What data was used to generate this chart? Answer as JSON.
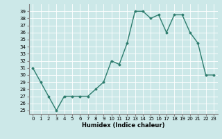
{
  "x": [
    0,
    1,
    2,
    3,
    4,
    5,
    6,
    7,
    8,
    9,
    10,
    11,
    12,
    13,
    14,
    15,
    16,
    17,
    18,
    19,
    20,
    21,
    22,
    23
  ],
  "y": [
    31,
    29,
    27,
    25,
    27,
    27,
    27,
    27,
    28,
    29,
    32,
    31.5,
    34.5,
    39,
    39,
    38,
    38.5,
    36,
    38.5,
    38.5,
    36,
    34.5,
    30,
    30
  ],
  "xlabel": "Humidex (Indice chaleur)",
  "xlim": [
    -0.5,
    23.5
  ],
  "ylim": [
    24.5,
    40
  ],
  "yticks": [
    25,
    26,
    27,
    28,
    29,
    30,
    31,
    32,
    33,
    34,
    35,
    36,
    37,
    38,
    39
  ],
  "xticks": [
    0,
    1,
    2,
    3,
    4,
    5,
    6,
    7,
    8,
    9,
    10,
    11,
    12,
    13,
    14,
    15,
    16,
    17,
    18,
    19,
    20,
    21,
    22,
    23
  ],
  "line_color": "#2e7d6e",
  "marker": "D",
  "marker_size": 1.5,
  "bg_color": "#cce8e8",
  "grid_color": "#ffffff",
  "tick_fontsize": 5,
  "xlabel_fontsize": 6,
  "linewidth": 1.0
}
